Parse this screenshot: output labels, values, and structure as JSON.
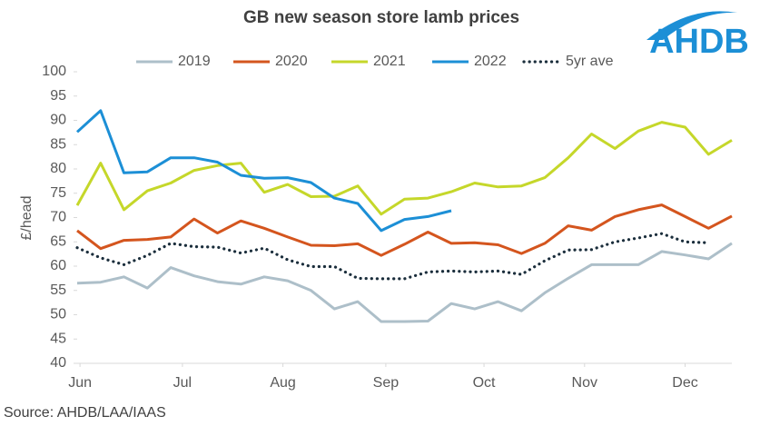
{
  "chart_data": {
    "type": "line",
    "title": "GB new season store lamb prices",
    "logo": "AHDB",
    "ylabel": "£/head",
    "source": "Source: AHDB/LAA/IAAS",
    "x": [
      0,
      1,
      2,
      3,
      4,
      5,
      6,
      7,
      8,
      9,
      10,
      11,
      12,
      13,
      14,
      15,
      16,
      17,
      18,
      19,
      20,
      21,
      22,
      23,
      24,
      25,
      26,
      27,
      28
    ],
    "xlim": [
      0,
      28
    ],
    "xticks": [
      {
        "value": 0.12,
        "label": "Jun"
      },
      {
        "value": 4.5,
        "label": "Jul"
      },
      {
        "value": 8.8,
        "label": "Aug"
      },
      {
        "value": 13.2,
        "label": "Sep"
      },
      {
        "value": 17.4,
        "label": "Oct"
      },
      {
        "value": 21.7,
        "label": "Nov"
      },
      {
        "value": 26.0,
        "label": "Dec"
      }
    ],
    "ylim": [
      40,
      100
    ],
    "yticks": [
      40,
      45,
      50,
      55,
      60,
      65,
      70,
      75,
      80,
      85,
      90,
      95,
      100
    ],
    "grid": false,
    "series": [
      {
        "name": "2019",
        "color": "#adbfc9",
        "dash": false,
        "values": [
          56.5,
          56.7,
          57.8,
          55.5,
          59.7,
          58,
          56.8,
          56.3,
          57.8,
          57,
          55,
          51.2,
          52.7,
          48.6,
          48.6,
          48.7,
          52.3,
          51.2,
          52.7,
          50.8,
          54.5,
          57.5,
          60.3,
          60.3,
          60.3,
          63,
          62.3,
          61.5,
          64.7
        ]
      },
      {
        "name": "2020",
        "color": "#d4551e",
        "dash": false,
        "values": [
          67.3,
          63.6,
          65.3,
          65.5,
          66.0,
          69.7,
          66.8,
          69.3,
          67.8,
          66.0,
          64.3,
          64.2,
          64.6,
          62.2,
          64.5,
          67.0,
          64.7,
          64.8,
          64.4,
          62.6,
          64.7,
          68.3,
          67.4,
          70.2,
          71.6,
          72.6,
          70.2,
          67.8,
          70.3
        ]
      },
      {
        "name": "2021",
        "color": "#c5d72a",
        "dash": false,
        "values": [
          72.5,
          81.2,
          71.6,
          75.5,
          77.1,
          79.7,
          80.7,
          81.2,
          75.2,
          76.8,
          74.3,
          74.4,
          76.5,
          70.7,
          73.8,
          74.0,
          75.3,
          77.1,
          76.3,
          76.5,
          78.2,
          82.3,
          87.2,
          84.2,
          87.8,
          89.6,
          88.6,
          83.0,
          85.9
        ]
      },
      {
        "name": "2022",
        "color": "#1c8fd6",
        "dash": false,
        "values": [
          87.6,
          92.0,
          79.2,
          79.4,
          82.3,
          82.3,
          81.4,
          78.7,
          78.1,
          78.2,
          77.2,
          74.0,
          72.9,
          67.3,
          69.6,
          70.2,
          71.4,
          null,
          null,
          null,
          null,
          null,
          null,
          null,
          null,
          null,
          null,
          null,
          null
        ]
      },
      {
        "name": "5yr ave",
        "color": "#1b2e3c",
        "dash": true,
        "values": [
          63.8,
          61.7,
          60.3,
          62.2,
          64.7,
          64.0,
          63.9,
          62.7,
          63.7,
          61.3,
          59.9,
          59.9,
          57.5,
          57.4,
          57.4,
          58.8,
          59.0,
          58.8,
          59.0,
          58.3,
          61.1,
          63.3,
          63.4,
          65.0,
          65.8,
          66.7,
          65.0,
          64.8,
          null
        ]
      }
    ]
  }
}
